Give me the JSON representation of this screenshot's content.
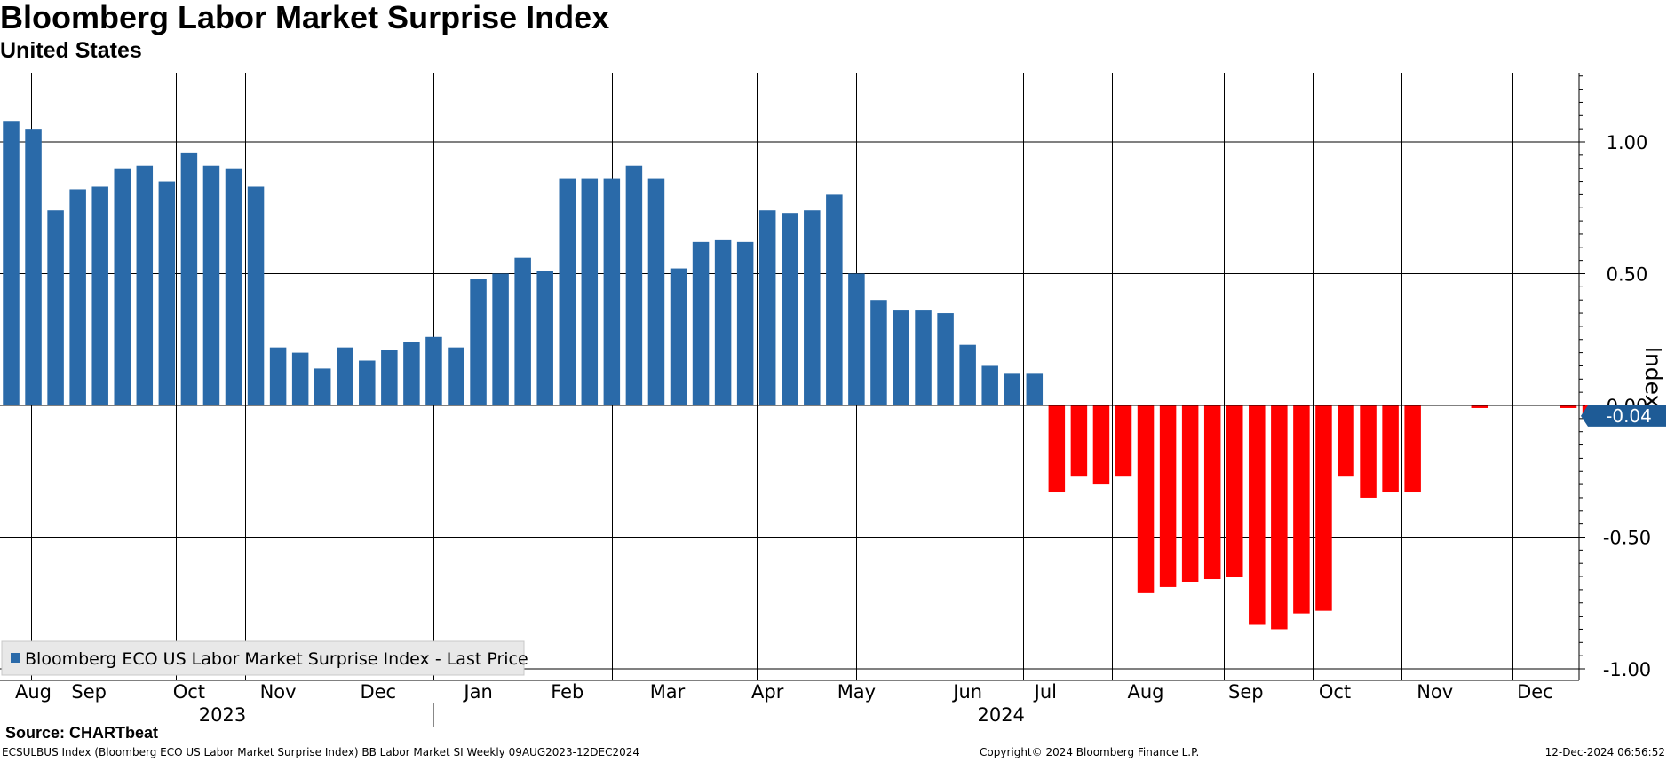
{
  "header": {
    "title": "Bloomberg Labor Market Surprise Index",
    "subtitle": "United States"
  },
  "footer": {
    "source": "Source: CHARTbeat",
    "left": "ECSULBUS Index (Bloomberg ECO US Labor Market Surprise Index) BB Labor Market SI  Weekly 09AUG2023-12DEC2024",
    "middle": "Copyright© 2024 Bloomberg Finance L.P.",
    "right": "12-Dec-2024 06:56:52"
  },
  "colors": {
    "positive": "#2a6aa9",
    "negative": "#ff0000",
    "grid": "#000000",
    "axis_text": "#000000",
    "last_price_badge": "#1e5b96"
  },
  "chart_data": {
    "type": "bar",
    "title": "Bloomberg Labor Market Surprise Index",
    "subtitle": "United States",
    "ylabel": "Index",
    "ylim": [
      -1.0,
      1.25
    ],
    "yticks": [
      1.0,
      0.5,
      0.0,
      -0.5,
      -1.0
    ],
    "ytick_labels": [
      "1.00",
      "0.50",
      "0.00",
      "-0.50",
      "-1.00"
    ],
    "grid": true,
    "frequency": "Weekly",
    "date_range": "09AUG2023-12DEC2024",
    "x_month_labels": [
      "Aug",
      "Sep",
      "Oct",
      "Nov",
      "Dec",
      "Jan",
      "Feb",
      "Mar",
      "Apr",
      "May",
      "Jun",
      "Jul",
      "Aug",
      "Sep",
      "Oct",
      "Nov",
      "Dec"
    ],
    "x_month_index": [
      1,
      3.5,
      8,
      12,
      16.5,
      21,
      25,
      29.5,
      34,
      38,
      43,
      46.5,
      51,
      55.5,
      59.5,
      64,
      68.5
    ],
    "x_year_labels": [
      "2023",
      "2024"
    ],
    "x_year_index": [
      9.5,
      44.5
    ],
    "month_gridline_index": [
      0.9,
      7.4,
      10.5,
      19.0,
      27.0,
      33.5,
      38.0,
      45.5,
      49.5,
      54.5,
      58.5,
      62.5,
      67.5
    ],
    "year_separator_index": 19.0,
    "legend": {
      "label": "Bloomberg ECO US Labor Market Surprise Index - Last Price",
      "position": "bottom-left"
    },
    "last_value": -0.04,
    "last_value_label": "-0.04",
    "series": [
      {
        "name": "Bloomberg ECO US Labor Market Surprise Index - Last Price",
        "values": [
          1.08,
          1.05,
          0.74,
          0.82,
          0.83,
          0.9,
          0.91,
          0.85,
          0.96,
          0.91,
          0.9,
          0.83,
          0.22,
          0.2,
          0.14,
          0.22,
          0.17,
          0.21,
          0.24,
          0.26,
          0.22,
          0.48,
          0.5,
          0.56,
          0.51,
          0.86,
          0.86,
          0.86,
          0.91,
          0.86,
          0.52,
          0.62,
          0.63,
          0.62,
          0.74,
          0.73,
          0.74,
          0.8,
          0.5,
          0.4,
          0.36,
          0.36,
          0.35,
          0.23,
          0.15,
          0.12,
          0.12,
          -0.33,
          -0.27,
          -0.3,
          -0.27,
          -0.71,
          -0.69,
          -0.67,
          -0.66,
          -0.65,
          -0.83,
          -0.85,
          -0.79,
          -0.78,
          -0.27,
          -0.35,
          -0.33,
          -0.33,
          0.0,
          0.0,
          -0.01,
          0.0,
          0.0,
          0.0,
          -0.01,
          -0.04
        ]
      }
    ]
  }
}
